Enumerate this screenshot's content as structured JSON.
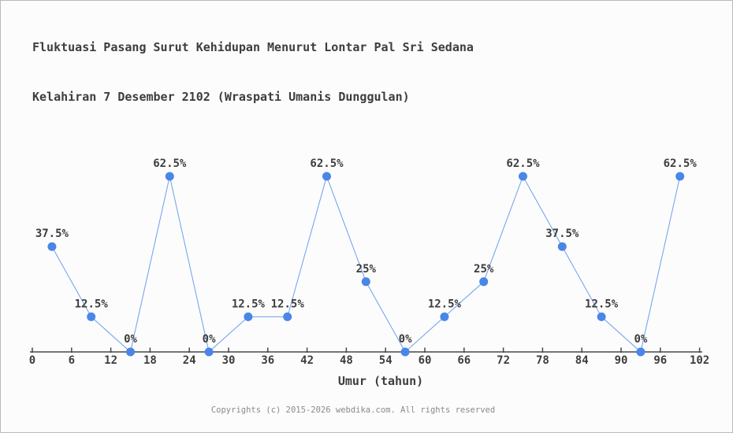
{
  "title": {
    "line1": "Fluktuasi Pasang Surut Kehidupan Menurut Lontar Pal Sri Sedana",
    "line2": "Kelahiran 7 Desember 2102 (Wraspati Umanis Dunggulan)"
  },
  "footer": {
    "text": "Copyrights (c) 2015-2026 webdika.com. All rights reserved"
  },
  "colors": {
    "background": "#fcfcfc",
    "border": "#b9b9b9",
    "marker": "#4a86e8",
    "line": "#6d9eef",
    "axis": "#474747",
    "label_text": "#3d3d3d",
    "footer_text": "#8a8a8a"
  },
  "chart_data": {
    "type": "line",
    "title": "Fluktuasi Pasang Surut Kehidupan Menurut Lontar Pal Sri Sedana Kelahiran 7 Desember 2102 (Wraspati Umanis Dunggulan)",
    "x": [
      3,
      9,
      15,
      21,
      27,
      33,
      39,
      45,
      51,
      57,
      63,
      69,
      75,
      81,
      87,
      93,
      99
    ],
    "values": [
      37.5,
      12.5,
      0,
      62.5,
      0,
      12.5,
      12.5,
      62.5,
      25,
      0,
      12.5,
      25,
      62.5,
      37.5,
      12.5,
      0,
      62.5
    ],
    "point_labels": [
      "37.5%",
      "12.5%",
      "0%",
      "62.5%",
      "0%",
      "12.5%",
      "12.5%",
      "62.5%",
      "25%",
      "0%",
      "12.5%",
      "25%",
      "62.5%",
      "37.5%",
      "12.5%",
      "0%",
      "62.5%"
    ],
    "x_ticks": [
      0,
      6,
      12,
      18,
      24,
      30,
      36,
      42,
      48,
      54,
      60,
      66,
      72,
      78,
      84,
      90,
      96,
      102
    ],
    "xlabel": "Umur (tahun)",
    "ylabel": "",
    "xlim": [
      0,
      102
    ],
    "ylim": [
      0,
      70
    ],
    "grid": false,
    "legend": "none",
    "y_axis_shown": false
  }
}
